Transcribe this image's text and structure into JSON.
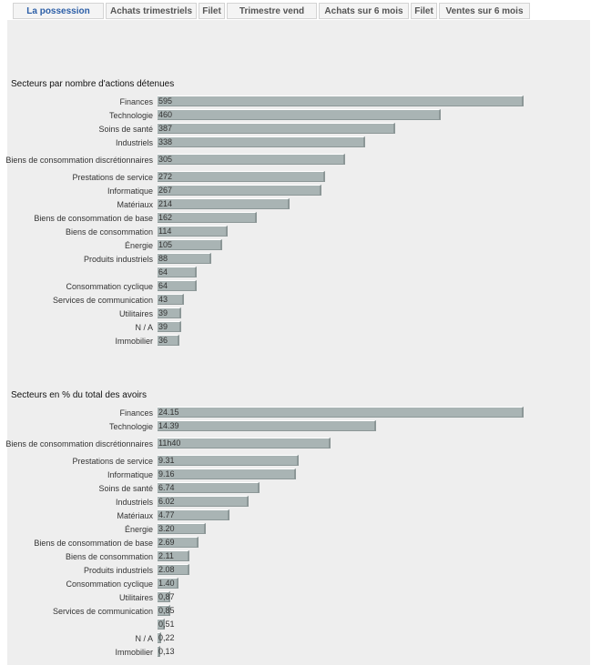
{
  "tabs": [
    {
      "label": "La possession",
      "active": true
    },
    {
      "label": "Achats trimestriels"
    },
    {
      "label": "Filet"
    },
    {
      "label": "Trimestre vend"
    },
    {
      "label": "Achats sur 6 mois"
    },
    {
      "label": "Filet"
    },
    {
      "label": "Ventes sur 6 mois"
    }
  ],
  "colors": {
    "bar": "#a9b4b4",
    "active_tab": "#2b5ea7",
    "background": "#eeeeee"
  },
  "chart_data": [
    {
      "type": "bar",
      "orientation": "horizontal",
      "title": "Secteurs par nombre d'actions détenues",
      "categories": [
        "Finances",
        "Technologie",
        "Soins de santé",
        "Industriels",
        "Biens de consommation discrétionnaires",
        "Prestations de service",
        "Informatique",
        "Matériaux",
        "Biens de consommation de base",
        "Biens de consommation",
        "Énergie",
        "Produits industriels",
        "",
        "Consommation cyclique",
        "Services de communication",
        "Utilitaires",
        "N / A",
        "Immobilier"
      ],
      "values": [
        595,
        460,
        387,
        338,
        305,
        272,
        267,
        214,
        162,
        114,
        105,
        88,
        64,
        64,
        43,
        39,
        39,
        36
      ],
      "value_labels": [
        "595",
        "460",
        "387",
        "338",
        "305",
        "272",
        "267",
        "214",
        "162",
        "114",
        "105",
        "88",
        "64",
        "64",
        "43",
        "39",
        "39",
        "36"
      ]
    },
    {
      "type": "bar",
      "orientation": "horizontal",
      "title": "Secteurs en % du total des avoirs",
      "categories": [
        "Finances",
        "Technologie",
        "Biens de consommation discrétionnaires",
        "Prestations de service",
        "Informatique",
        "Soins de santé",
        "Industriels",
        "Matériaux",
        "Énergie",
        "Biens de consommation de base",
        "Biens de consommation",
        "Produits industriels",
        "Consommation cyclique",
        "Utilitaires",
        "Services de communication",
        "",
        "N / A",
        "Immobilier"
      ],
      "values": [
        24.15,
        14.39,
        11.4,
        9.31,
        9.16,
        6.74,
        6.02,
        4.77,
        3.2,
        2.69,
        2.11,
        2.08,
        1.4,
        0.87,
        0.85,
        0.51,
        0.22,
        0.13
      ],
      "value_labels": [
        "24.15",
        "14.39",
        "11h40",
        "9.31",
        "9.16",
        "6.74",
        "6.02",
        "4.77",
        "3.20",
        "2.69",
        "2.11",
        "2.08",
        "1.40",
        "0,87",
        "0,85",
        "0,51",
        "0,22",
        "0,13"
      ]
    }
  ]
}
